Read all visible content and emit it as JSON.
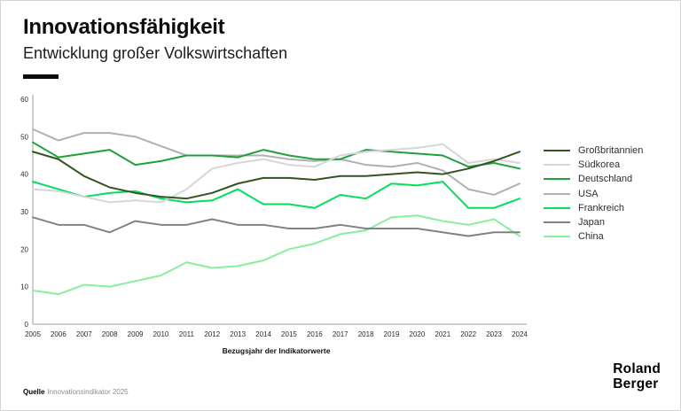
{
  "header": {
    "title": "Innovationsfähigkeit",
    "subtitle": "Entwicklung großer Volkswirtschaften"
  },
  "footer": {
    "source_label": "Quelle",
    "source_text": "Innovationsindikator 2025",
    "logo_line1": "Roland",
    "logo_line2": "Berger"
  },
  "chart_data": {
    "type": "line",
    "title": "Innovationsfähigkeit",
    "subtitle": "Entwicklung großer Volkswirtschaften",
    "xlabel": "Bezugsjahr der Indikatorwerte",
    "ylabel": "",
    "ylim": [
      0,
      60
    ],
    "yticks": [
      0,
      10,
      20,
      30,
      40,
      50,
      60
    ],
    "grid": false,
    "legend_position": "right",
    "x": [
      2005,
      2006,
      2007,
      2008,
      2009,
      2010,
      2011,
      2012,
      2013,
      2014,
      2015,
      2016,
      2017,
      2018,
      2019,
      2020,
      2021,
      2022,
      2023,
      2024
    ],
    "series": [
      {
        "name": "Großbritannien",
        "color": "#33541e",
        "values": [
          46,
          44,
          39.5,
          36.5,
          35,
          34,
          33.5,
          35,
          37.5,
          39,
          39,
          38.5,
          39.5,
          39.5,
          40,
          40.5,
          40,
          41.5,
          43.5,
          46
        ]
      },
      {
        "name": "Südkorea",
        "color": "#d6d6d6",
        "values": [
          36,
          35.5,
          34,
          32.5,
          33,
          32.5,
          36,
          41.5,
          43,
          44,
          42.5,
          42,
          45,
          46,
          46.5,
          47,
          48,
          43,
          44,
          43
        ]
      },
      {
        "name": "Deutschland",
        "color": "#1fa03c",
        "values": [
          48.5,
          44.5,
          45.5,
          46.5,
          42.5,
          43.5,
          45,
          45,
          44.5,
          46.5,
          45,
          44,
          44,
          46.5,
          46,
          45.5,
          45,
          42,
          43,
          41.5
        ]
      },
      {
        "name": "USA",
        "color": "#b0b0b0",
        "values": [
          52,
          49,
          51,
          51,
          50,
          47.5,
          45,
          45,
          45,
          45,
          44,
          43.5,
          44,
          42.5,
          42,
          43,
          41,
          36,
          34.5,
          37.5
        ]
      },
      {
        "name": "Frankreich",
        "color": "#00e05e",
        "values": [
          38,
          36,
          34,
          35,
          35.5,
          33.5,
          32.5,
          33,
          36,
          32,
          32,
          31,
          34.5,
          33.5,
          37.5,
          37,
          38,
          31,
          31,
          33.5
        ]
      },
      {
        "name": "Japan",
        "color": "#828282",
        "values": [
          28.5,
          26.5,
          26.5,
          24.5,
          27.5,
          26.5,
          26.5,
          28,
          26.5,
          26.5,
          25.5,
          25.5,
          26.5,
          25.5,
          25.5,
          25.5,
          24.5,
          23.5,
          24.5,
          24.5
        ]
      },
      {
        "name": "China",
        "color": "#86ef9e",
        "values": [
          9,
          8,
          10.5,
          10,
          11.5,
          13,
          16.5,
          15,
          15.5,
          17,
          20,
          21.5,
          24,
          25,
          28.5,
          29,
          27.5,
          26.5,
          28,
          23.5
        ]
      }
    ]
  }
}
